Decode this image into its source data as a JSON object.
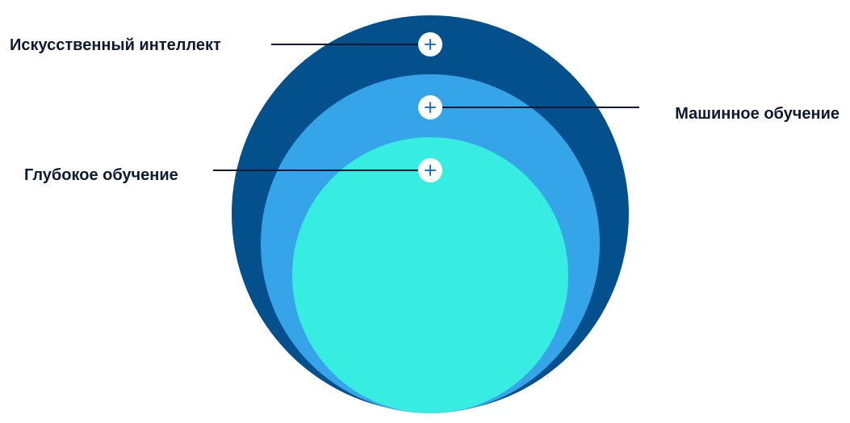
{
  "colors": {
    "background": "#ffffff",
    "outer_circle": "#04508c",
    "middle_circle": "#36a4e8",
    "inner_circle": "#37ede1",
    "label_text": "#0e1a33",
    "leader_line": "#0e1a33",
    "button_fill": "#ffffff",
    "plus_sign": "#1f73c4"
  },
  "icons": {
    "expand": "plus-icon"
  },
  "layers": [
    {
      "id": "ai",
      "label": "Искусственный интеллект",
      "level": "outer"
    },
    {
      "id": "ml",
      "label": "Машинное обучение",
      "level": "middle"
    },
    {
      "id": "dl",
      "label": "Глубокое обучение",
      "level": "inner"
    }
  ]
}
